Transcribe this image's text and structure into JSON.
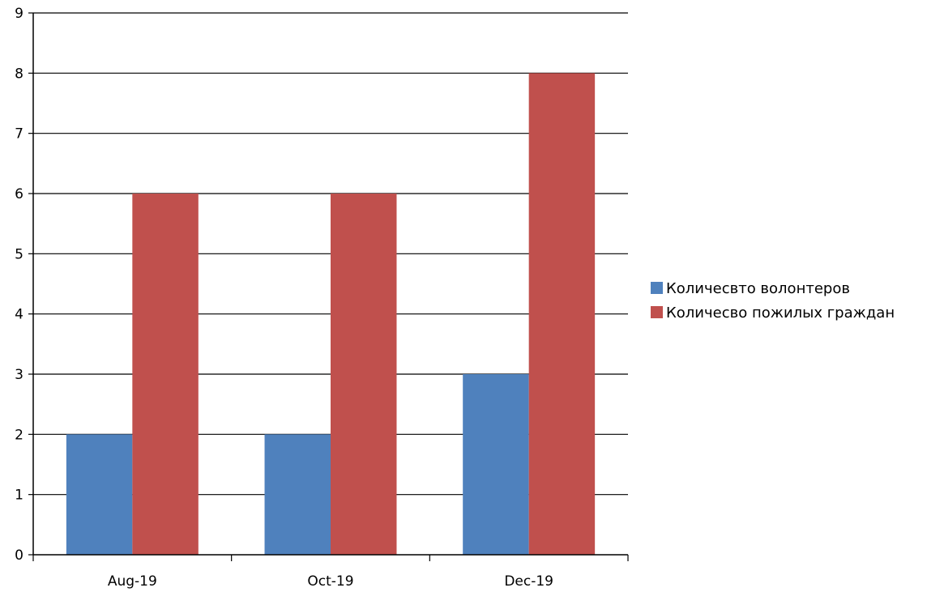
{
  "chart_data": {
    "type": "bar",
    "title": "",
    "xlabel": "",
    "ylabel": "",
    "categories": [
      "Aug-19",
      "Oct-19",
      "Dec-19"
    ],
    "ylim": [
      0,
      9
    ],
    "y_ticks": [
      0,
      1,
      2,
      3,
      4,
      5,
      6,
      7,
      8,
      9
    ],
    "grid": true,
    "legend_position": "right",
    "series": [
      {
        "name": "Количесвто волонтеров",
        "values": [
          2,
          2,
          3
        ],
        "color": "#4f81bd"
      },
      {
        "name": "Количесво пожилых граждан",
        "values": [
          6,
          6,
          8
        ],
        "color": "#c0504d"
      }
    ]
  }
}
